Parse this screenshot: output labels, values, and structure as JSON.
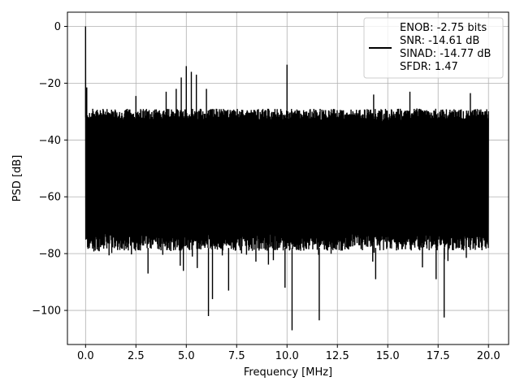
{
  "chart_data": {
    "type": "line",
    "title": "",
    "xlabel": "Frequency [MHz]",
    "ylabel": "PSD [dB]",
    "xlim": [
      -0.9,
      21.0
    ],
    "ylim": [
      -112,
      5
    ],
    "xticks": [
      0.0,
      2.5,
      5.0,
      7.5,
      10.0,
      12.5,
      15.0,
      17.5,
      20.0
    ],
    "xtick_labels": [
      "0.0",
      "2.5",
      "5.0",
      "7.5",
      "10.0",
      "12.5",
      "15.0",
      "17.5",
      "20.0"
    ],
    "yticks": [
      0,
      -20,
      -40,
      -60,
      -80,
      -100
    ],
    "ytick_labels": [
      "0",
      "−20",
      "−40",
      "−60",
      "−80",
      "−100"
    ],
    "grid": true,
    "legend_position": "top-right",
    "series": [
      {
        "color": "#000000",
        "description_lines": [
          "ENOB: -2.75 bits",
          "SNR: -14.61 dB",
          "SINAD: -14.77 dB",
          "SFDR: 1.47"
        ],
        "x_range": [
          0.0,
          20.0
        ],
        "noise_floor": {
          "upper": -32,
          "lower": -78
        },
        "peaks": [
          {
            "x": 0.0,
            "y": 0.0
          },
          {
            "x": 0.06,
            "y": -21.5
          },
          {
            "x": 2.5,
            "y": -24.5
          },
          {
            "x": 4.0,
            "y": -23
          },
          {
            "x": 4.5,
            "y": -22
          },
          {
            "x": 4.75,
            "y": -18
          },
          {
            "x": 5.0,
            "y": -14
          },
          {
            "x": 5.25,
            "y": -16
          },
          {
            "x": 5.5,
            "y": -17
          },
          {
            "x": 6.0,
            "y": -22
          },
          {
            "x": 10.0,
            "y": -13.5
          },
          {
            "x": 14.3,
            "y": -24
          },
          {
            "x": 16.1,
            "y": -23
          },
          {
            "x": 19.1,
            "y": -23.5
          }
        ],
        "dips": [
          {
            "x": 6.1,
            "y": -102
          },
          {
            "x": 6.3,
            "y": -96
          },
          {
            "x": 7.1,
            "y": -93
          },
          {
            "x": 9.9,
            "y": -92
          },
          {
            "x": 10.25,
            "y": -107
          },
          {
            "x": 11.6,
            "y": -103.5
          },
          {
            "x": 17.8,
            "y": -102.5
          },
          {
            "x": 17.4,
            "y": -89
          },
          {
            "x": 14.4,
            "y": -89
          },
          {
            "x": 3.1,
            "y": -87
          }
        ]
      }
    ]
  }
}
